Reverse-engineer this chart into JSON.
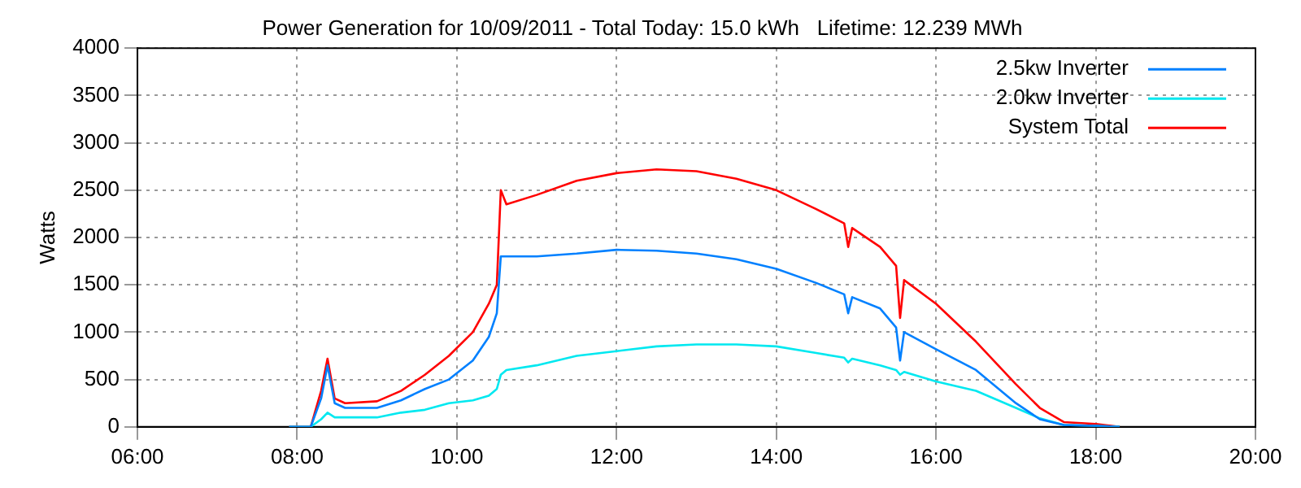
{
  "chart_data": {
    "type": "line",
    "title": "Power Generation for 10/09/2011 - Total Today: 15.0 kWh   Lifetime: 12.239 MWh",
    "ylabel": "Watts",
    "x": [
      7.9,
      8.17,
      8.3,
      8.38,
      8.47,
      8.6,
      9.0,
      9.3,
      9.6,
      9.9,
      10.2,
      10.4,
      10.5,
      10.55,
      10.62,
      11.0,
      11.5,
      12.0,
      12.5,
      13.0,
      13.5,
      14.0,
      14.5,
      14.85,
      14.9,
      14.95,
      15.3,
      15.5,
      15.55,
      15.6,
      16.0,
      16.5,
      17.0,
      17.3,
      17.6,
      18.0,
      18.3
    ],
    "series": [
      {
        "name": "2.5kw Inverter",
        "color": "#0080ff",
        "values": [
          0,
          0,
          300,
          650,
          250,
          200,
          200,
          280,
          400,
          500,
          700,
          950,
          1200,
          1800,
          1800,
          1800,
          1830,
          1870,
          1860,
          1830,
          1770,
          1670,
          1520,
          1400,
          1200,
          1370,
          1250,
          1050,
          700,
          1000,
          820,
          600,
          250,
          80,
          20,
          10,
          0
        ]
      },
      {
        "name": "2.0kw Inverter",
        "color": "#00e8f0",
        "values": [
          0,
          0,
          80,
          150,
          100,
          100,
          100,
          150,
          180,
          250,
          280,
          330,
          400,
          550,
          600,
          650,
          750,
          800,
          850,
          870,
          870,
          850,
          780,
          730,
          680,
          720,
          650,
          600,
          550,
          580,
          480,
          380,
          200,
          90,
          20,
          10,
          0
        ]
      },
      {
        "name": "System Total",
        "color": "#ff0000",
        "values": [
          0,
          0,
          380,
          720,
          300,
          250,
          270,
          380,
          550,
          750,
          1000,
          1300,
          1500,
          2500,
          2350,
          2450,
          2600,
          2680,
          2720,
          2700,
          2620,
          2500,
          2300,
          2150,
          1900,
          2100,
          1900,
          1700,
          1150,
          1550,
          1300,
          900,
          450,
          200,
          50,
          30,
          0
        ]
      }
    ],
    "xlim": [
      6,
      20
    ],
    "xticks": [
      {
        "value": 6,
        "label": "06:00"
      },
      {
        "value": 8,
        "label": "08:00"
      },
      {
        "value": 10,
        "label": "10:00"
      },
      {
        "value": 12,
        "label": "12:00"
      },
      {
        "value": 14,
        "label": "14:00"
      },
      {
        "value": 16,
        "label": "16:00"
      },
      {
        "value": 18,
        "label": "18:00"
      },
      {
        "value": 20,
        "label": "20:00"
      }
    ],
    "ylim": [
      0,
      4000
    ],
    "yticks": [
      0,
      500,
      1000,
      1500,
      2000,
      2500,
      3000,
      3500,
      4000
    ],
    "grid": true,
    "legend": "top right",
    "marker": "none",
    "line_style": "solid"
  }
}
